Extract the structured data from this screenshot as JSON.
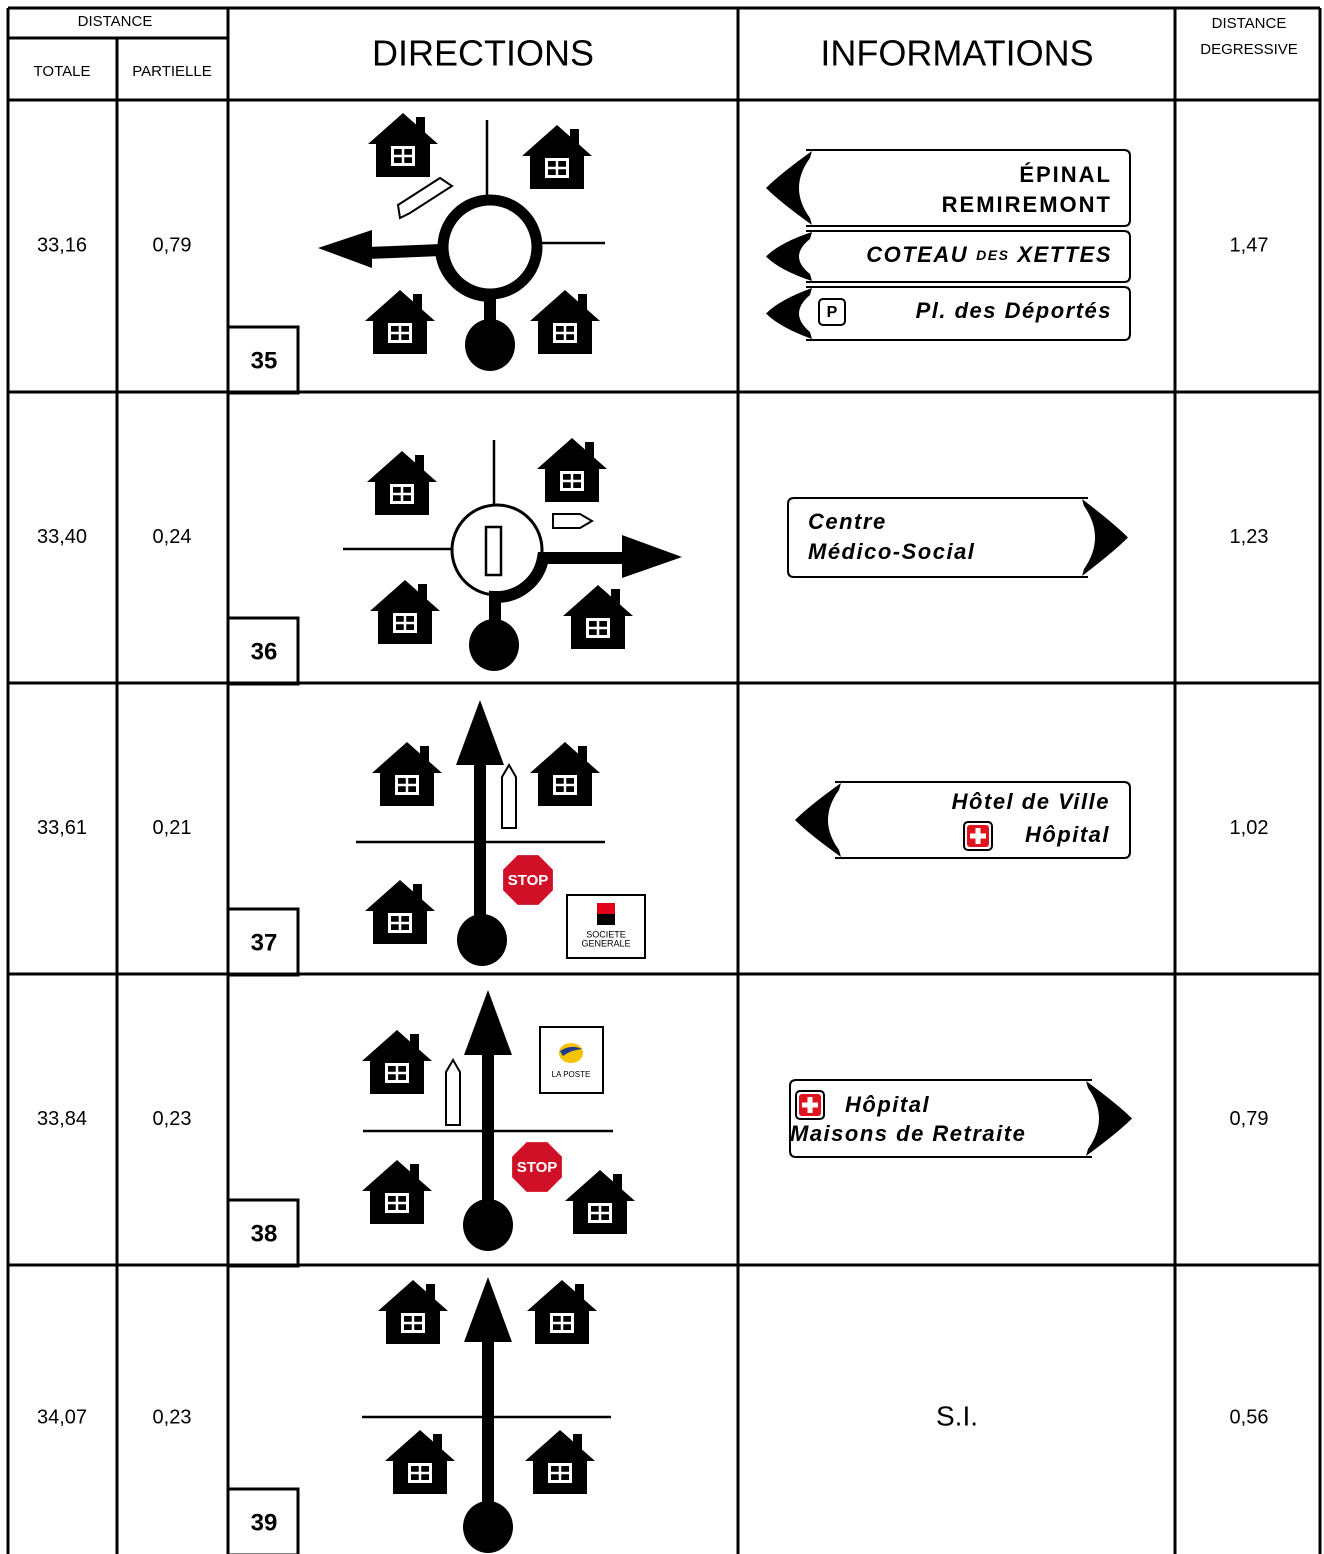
{
  "header": {
    "distance": "DISTANCE",
    "totale": "TOTALE",
    "partielle": "PARTIELLE",
    "directions": "DIRECTIONS",
    "informations": "INFORMATIONS",
    "degressive": [
      "DISTANCE",
      "DEGRESSIVE"
    ]
  },
  "rows": [
    {
      "totale": "33,16",
      "partielle": "0,79",
      "step": "35",
      "degressive": "1,47",
      "signs": [
        {
          "lines": [
            "ÉPINAL",
            "REMIREMONT"
          ]
        },
        {
          "lines": [
            "COTEAU",
            "DES",
            "XETTES"
          ]
        },
        {
          "icon": "P",
          "lines": [
            "Pl. des Déportés"
          ]
        }
      ]
    },
    {
      "totale": "33,40",
      "partielle": "0,24",
      "step": "36",
      "degressive": "1,23",
      "signs": [
        {
          "lines": [
            "Centre",
            "Médico-Social"
          ]
        }
      ]
    },
    {
      "totale": "33,61",
      "partielle": "0,21",
      "step": "37",
      "degressive": "1,02",
      "signs": [
        {
          "lines": [
            "Hôtel de Ville",
            "Hôpital"
          ]
        }
      ],
      "stop": "STOP",
      "logo": [
        "SOCIETE",
        "GENERALE"
      ]
    },
    {
      "totale": "33,84",
      "partielle": "0,23",
      "step": "38",
      "degressive": "0,79",
      "signs": [
        {
          "lines": [
            "Hôpital",
            "Maisons de Retraite"
          ]
        }
      ],
      "stop": "STOP",
      "logo": [
        "LA POSTE"
      ]
    },
    {
      "totale": "34,07",
      "partielle": "0,23",
      "step": "39",
      "degressive": "0,56",
      "info": "S.I."
    }
  ]
}
